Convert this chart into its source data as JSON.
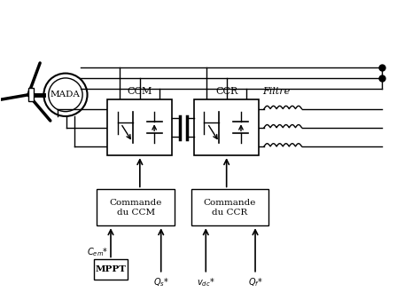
{
  "bg_color": "#ffffff",
  "line_color": "#000000",
  "fig_bg": "#ffffff",
  "labels": {
    "mada": "MADA",
    "ccm": "CCM",
    "ccr": "CCR",
    "filtre": "Filtre",
    "commande_ccm": "Commande\ndu CCM",
    "commande_ccr": "Commande\ndu CCR",
    "mppt": "MPPT",
    "cem": "$C_{em}$*",
    "qs": "$Q_s$*",
    "vdc": "$v_{dc}$*",
    "qf": "$Q_f$*"
  },
  "xlim": [
    0,
    10
  ],
  "ylim": [
    0,
    7
  ],
  "figsize": [
    4.74,
    3.29
  ],
  "dpi": 100
}
